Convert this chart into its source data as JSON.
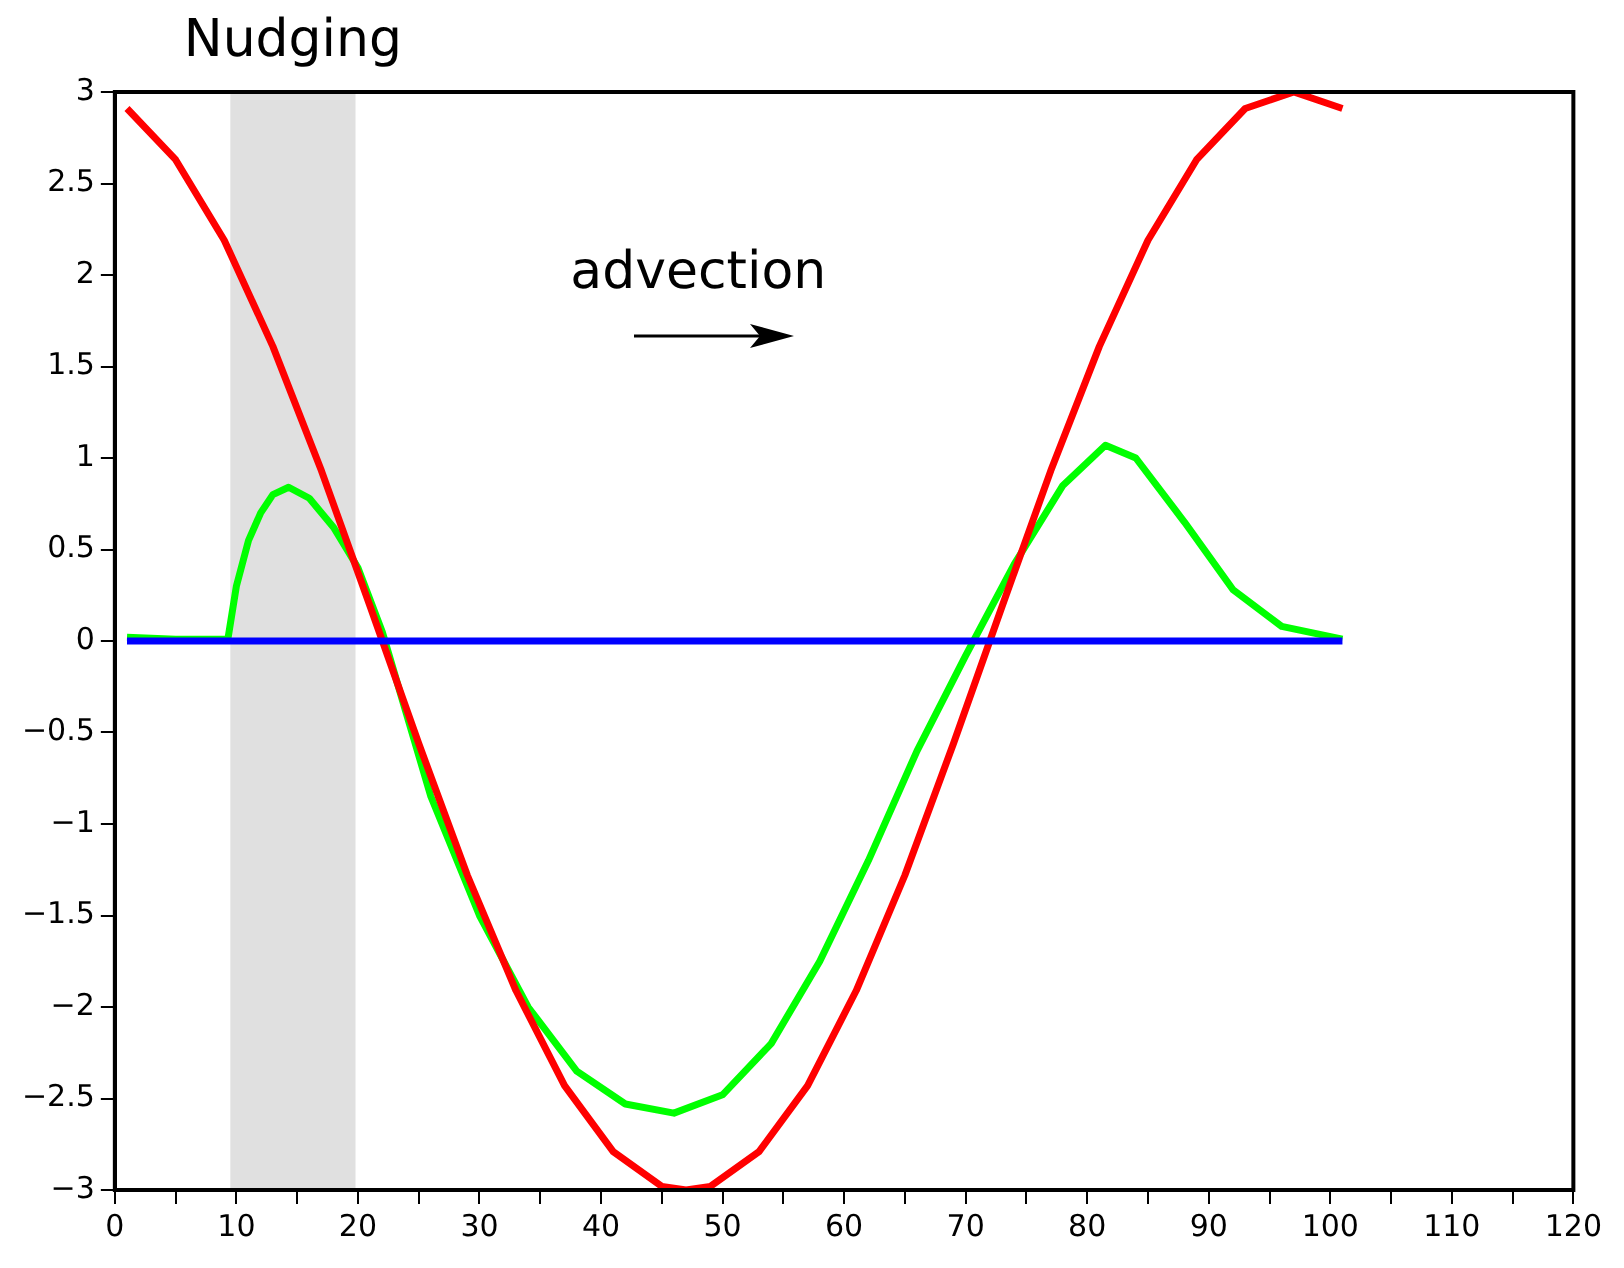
{
  "chart_data": {
    "type": "line",
    "annotations": [
      "advection"
    ],
    "xlim": [
      0,
      120
    ],
    "xticks": [
      0,
      {
        "value": 5,
        "label": null
      },
      10,
      {
        "value": 15,
        "label": null
      },
      20,
      {
        "value": 25,
        "label": null
      },
      30,
      {
        "value": 35,
        "label": null
      },
      40,
      {
        "value": 45,
        "label": null
      },
      50,
      {
        "value": 55,
        "label": null
      },
      60,
      {
        "value": 65,
        "label": null
      },
      70,
      {
        "value": 75,
        "label": null
      },
      80,
      {
        "value": 85,
        "label": null
      },
      90,
      {
        "value": 95,
        "label": null
      },
      100,
      {
        "value": 105,
        "label": null
      },
      110,
      {
        "value": 115,
        "label": null
      },
      120
    ],
    "ylim": [
      -3,
      3
    ],
    "yticks": [
      {
        "value": -3,
        "label": "−3"
      },
      {
        "value": -2.5,
        "label": "−2.5"
      },
      {
        "value": -2,
        "label": "−2"
      },
      {
        "value": -1.5,
        "label": "−1.5"
      },
      {
        "value": -1,
        "label": "−1"
      },
      {
        "value": -0.5,
        "label": "−0.5"
      },
      0,
      0.5,
      1,
      1.5,
      2,
      2.5,
      3
    ],
    "grid": false,
    "legend": false,
    "line_style": "solid",
    "marker": "none",
    "bands": [
      {
        "axis": "x",
        "from": 9.5,
        "to": 19.8,
        "label": "Nudging",
        "color": "#e0e0e0"
      }
    ],
    "series": [
      {
        "color": "#0000ff",
        "x": [
          1,
          101
        ],
        "values": [
          0,
          0
        ]
      },
      {
        "color": "#ff0000",
        "x": [
          1,
          5,
          9,
          13,
          17,
          21,
          25,
          29,
          33,
          37,
          41,
          45,
          47,
          49,
          53,
          57,
          61,
          65,
          69,
          73,
          77,
          81,
          85,
          89,
          93,
          97,
          101
        ],
        "values": [
          2.91,
          2.63,
          2.19,
          1.61,
          0.93,
          0.19,
          -0.56,
          -1.28,
          -1.91,
          -2.43,
          -2.79,
          -2.98,
          -3,
          -2.98,
          -2.79,
          -2.43,
          -1.91,
          -1.28,
          -0.56,
          0.19,
          0.93,
          1.61,
          2.19,
          2.63,
          2.91,
          3,
          2.91
        ]
      },
      {
        "color": "#00ff00",
        "x": [
          1,
          5,
          9.3,
          10,
          11,
          12,
          13,
          14.3,
          16,
          18,
          20,
          22,
          24,
          26,
          30,
          34,
          38,
          42,
          46,
          50,
          54,
          58,
          62,
          66,
          70,
          74,
          78,
          81.5,
          84,
          88,
          92,
          96,
          101
        ],
        "values": [
          0.02,
          0.01,
          0.01,
          0.3,
          0.55,
          0.7,
          0.8,
          0.84,
          0.78,
          0.62,
          0.4,
          0.05,
          -0.4,
          -0.85,
          -1.5,
          -2.0,
          -2.35,
          -2.53,
          -2.58,
          -2.48,
          -2.2,
          -1.75,
          -1.2,
          -0.6,
          -0.08,
          0.42,
          0.85,
          1.07,
          1.0,
          0.65,
          0.28,
          0.08,
          0.01
        ]
      }
    ]
  }
}
